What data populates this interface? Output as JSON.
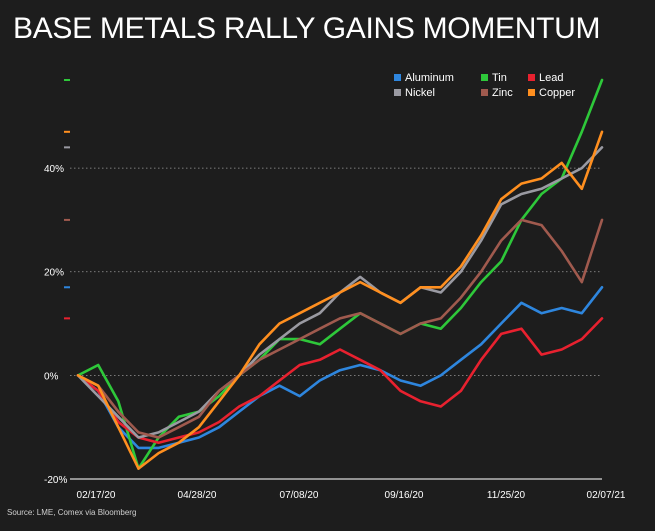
{
  "chart_data": {
    "type": "line",
    "title": "BASE METALS RALLY GAINS MOMENTUM",
    "source": "Source: LME, Comex via Bloomberg",
    "x_tick_labels": [
      "02/17/20",
      "04/28/20",
      "07/08/20",
      "09/16/20",
      "11/25/20",
      "02/07/21"
    ],
    "y_tick_labels": [
      "-20%",
      "0%",
      "20%",
      "40%"
    ],
    "ylim": [
      -20,
      57
    ],
    "ylabel": "",
    "xlabel": "",
    "grid": "horizontal dotted",
    "legend_position": "top-right",
    "x": [
      "02/03/20",
      "02/17/20",
      "03/02/20",
      "03/16/20",
      "03/30/20",
      "04/13/20",
      "04/28/20",
      "05/11/20",
      "05/25/20",
      "06/08/20",
      "06/22/20",
      "07/08/20",
      "07/20/20",
      "08/03/20",
      "08/17/20",
      "08/31/20",
      "09/16/20",
      "09/28/20",
      "10/12/20",
      "10/26/20",
      "11/09/20",
      "11/25/20",
      "12/07/20",
      "12/21/20",
      "01/04/21",
      "01/18/21",
      "02/07/21"
    ],
    "series": [
      {
        "name": "Aluminum",
        "color": "#2e86de",
        "values": [
          0,
          -3,
          -10,
          -14,
          -14,
          -13,
          -12,
          -10,
          -7,
          -4,
          -2,
          -4,
          -1,
          1,
          2,
          1,
          -1,
          -2,
          0,
          3,
          6,
          10,
          14,
          12,
          13,
          12,
          17
        ]
      },
      {
        "name": "Tin",
        "color": "#2ec83a",
        "values": [
          0,
          2,
          -5,
          -18,
          -12,
          -8,
          -7,
          -4,
          0,
          3,
          7,
          7,
          6,
          9,
          12,
          10,
          8,
          10,
          9,
          13,
          18,
          22,
          30,
          35,
          38,
          47,
          57
        ]
      },
      {
        "name": "Lead",
        "color": "#e8212f",
        "values": [
          0,
          -3,
          -9,
          -12,
          -13,
          -12,
          -11,
          -9,
          -6,
          -4,
          -1,
          2,
          3,
          5,
          3,
          1,
          -3,
          -5,
          -6,
          -3,
          3,
          8,
          9,
          4,
          5,
          7,
          11
        ]
      },
      {
        "name": "Nickel",
        "color": "#9a9aa2",
        "values": [
          0,
          -4,
          -8,
          -12,
          -11,
          -9,
          -7,
          -3,
          0,
          4,
          7,
          10,
          12,
          16,
          19,
          16,
          14,
          17,
          16,
          20,
          26,
          33,
          35,
          36,
          38,
          40,
          44
        ]
      },
      {
        "name": "Zinc",
        "color": "#a05a4e",
        "values": [
          0,
          -2,
          -7,
          -11,
          -12,
          -10,
          -8,
          -3,
          0,
          3,
          5,
          7,
          9,
          11,
          12,
          10,
          8,
          10,
          11,
          15,
          20,
          26,
          30,
          29,
          24,
          18,
          30
        ]
      },
      {
        "name": "Copper",
        "color": "#ff8f1f",
        "values": [
          0,
          -2,
          -10,
          -18,
          -15,
          -13,
          -10,
          -5,
          0,
          6,
          10,
          12,
          14,
          16,
          18,
          16,
          14,
          17,
          17,
          21,
          27,
          34,
          37,
          38,
          41,
          36,
          47
        ]
      }
    ],
    "end_markers": [
      57,
      47,
      44,
      30,
      17,
      11
    ]
  }
}
